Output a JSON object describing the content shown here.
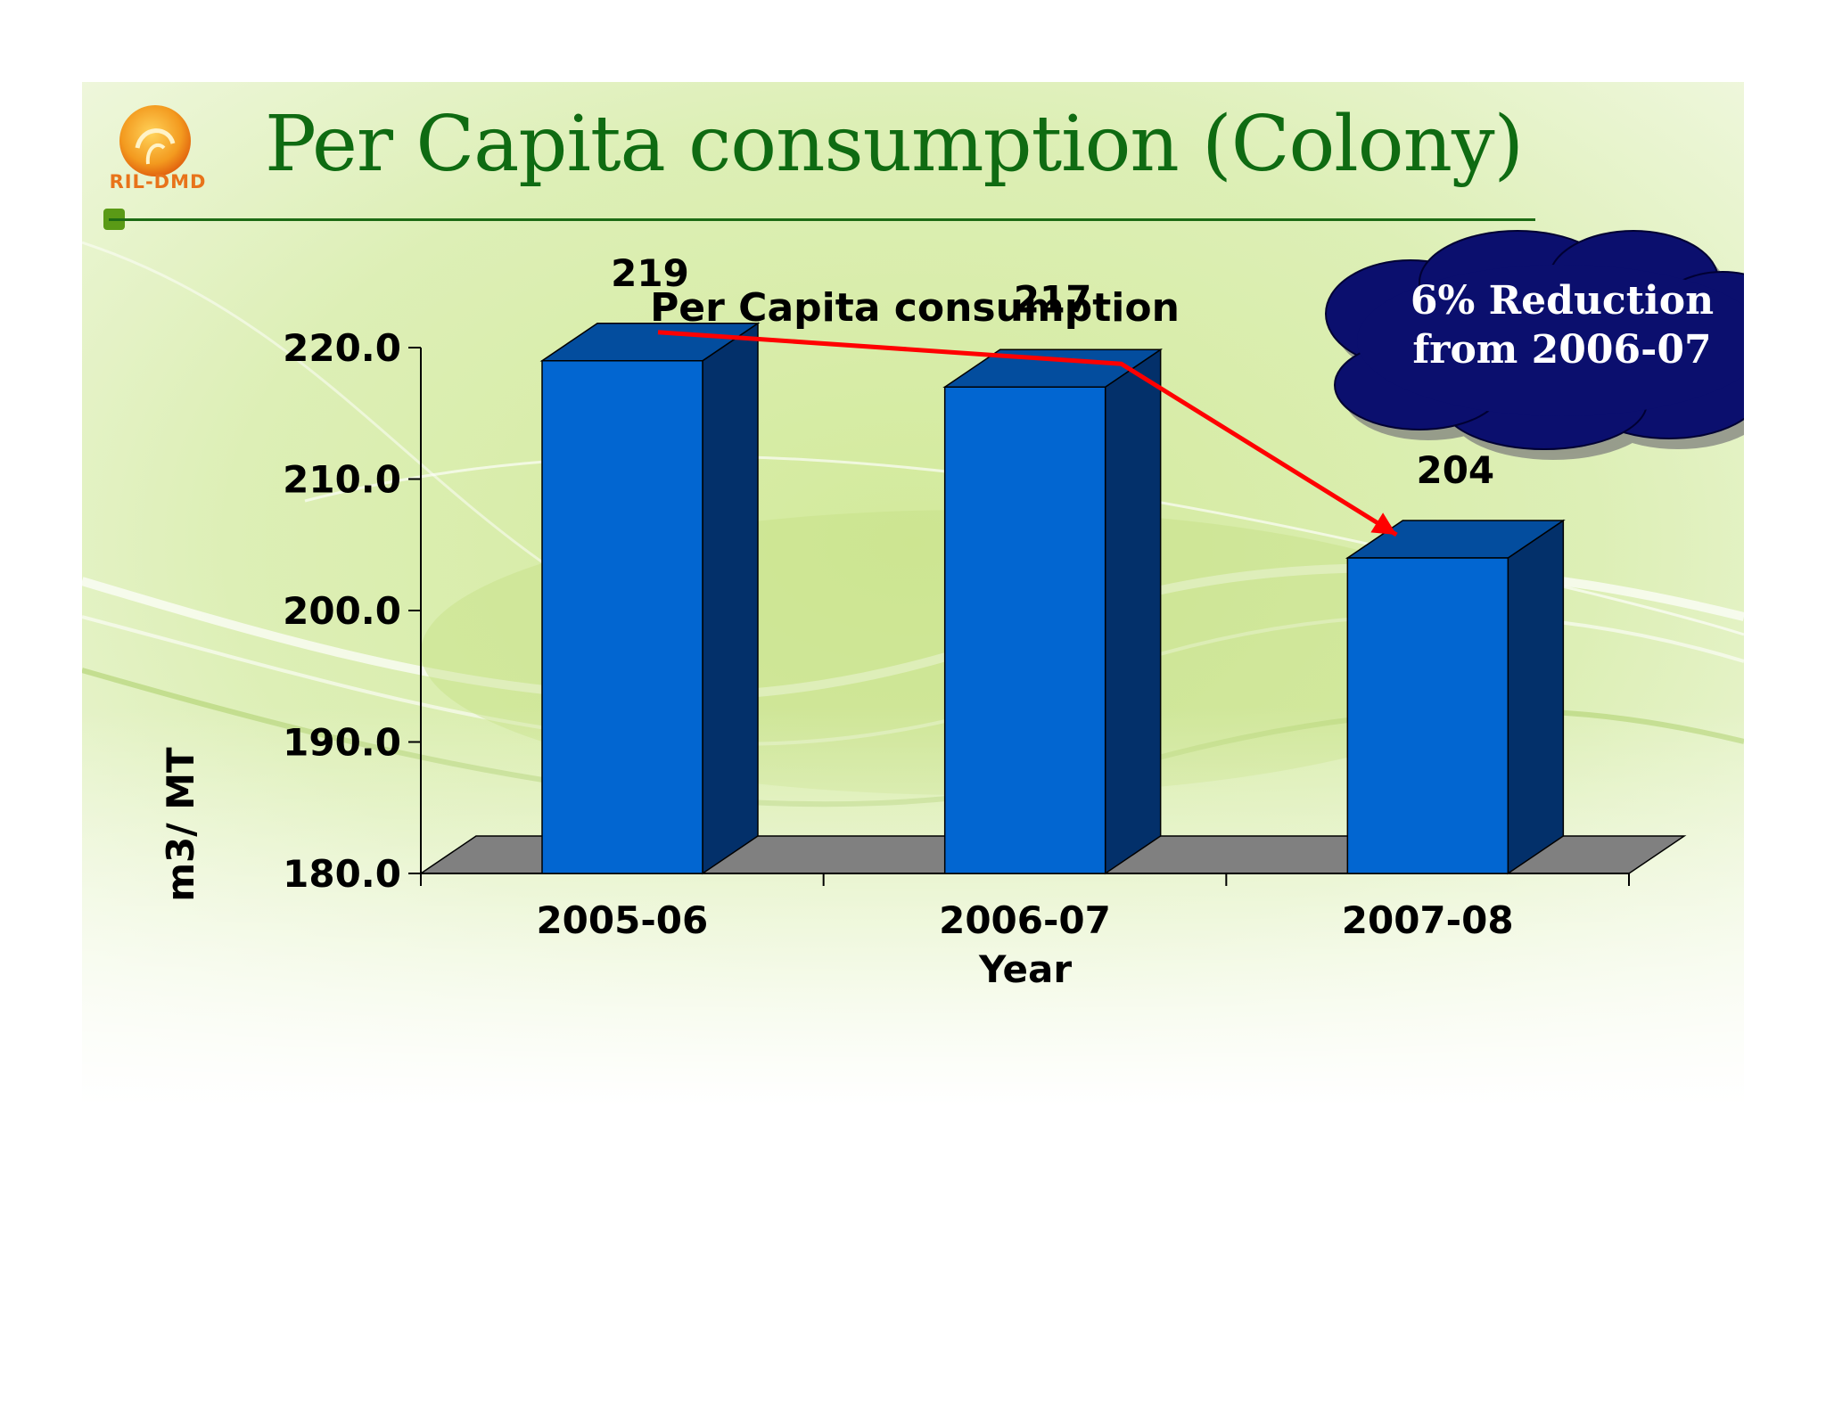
{
  "slide": {
    "title": "Per Capita consumption (Colony)",
    "logo_text": "RIL-DMD",
    "colors": {
      "title": "#0f6b12",
      "rule": "#1d6b14",
      "logo": "#e8731a"
    }
  },
  "callout": {
    "line1": "6% Reduction",
    "line2": "from 2006-07",
    "fill": "#0b0f6e"
  },
  "chart_data": {
    "type": "bar",
    "title": "Per Capita consumption",
    "xlabel": "Year",
    "ylabel": "m3/ MT",
    "categories": [
      "2005-06",
      "2006-07",
      "2007-08"
    ],
    "values": [
      219,
      217,
      204
    ],
    "data_labels": [
      "219",
      "217",
      "204"
    ],
    "ylim": [
      180,
      220
    ],
    "yticks": [
      180,
      190,
      200,
      210,
      220
    ],
    "ytick_labels": [
      "180.0",
      "190.0",
      "200.0",
      "210.0",
      "220.0"
    ],
    "style": "3d-column",
    "colors": {
      "bar_front": "#0266d1",
      "bar_side": "#03306a",
      "bar_top": "#034d9e",
      "floor": "#808080",
      "trend_arrow": "#ff0000"
    },
    "grid": false,
    "legend": "none"
  }
}
